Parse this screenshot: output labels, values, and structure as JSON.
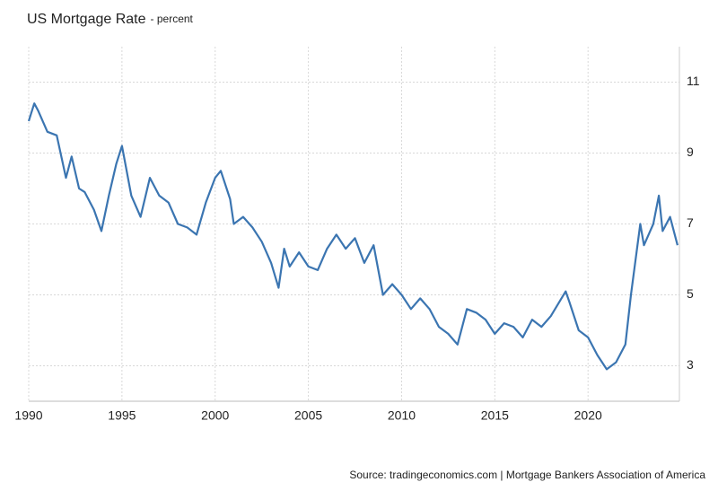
{
  "chart_data": {
    "type": "line",
    "title": "US Mortgage Rate",
    "subtitle": "- percent",
    "source": "Source: tradingeconomics.com | Mortgage Bankers Association of America",
    "xlim": [
      1990,
      2024.9
    ],
    "xticks": [
      1990,
      1995,
      2000,
      2005,
      2010,
      2015,
      2020
    ],
    "ylim": [
      2,
      12
    ],
    "yticks": [
      3,
      5,
      7,
      9,
      11
    ],
    "grid": true,
    "x": [
      1990,
      1990.3,
      1990.5,
      1991,
      1991.5,
      1992,
      1992.3,
      1992.7,
      1993,
      1993.5,
      1993.9,
      1994.3,
      1994.7,
      1995,
      1995.5,
      1996,
      1996.5,
      1997,
      1997.5,
      1998,
      1998.5,
      1999,
      1999.5,
      2000,
      2000.3,
      2000.8,
      2001,
      2001.5,
      2002,
      2002.5,
      2003,
      2003.4,
      2003.7,
      2004,
      2004.5,
      2005,
      2005.5,
      2006,
      2006.5,
      2007,
      2007.5,
      2008,
      2008.5,
      2009,
      2009.5,
      2010,
      2010.5,
      2011,
      2011.5,
      2012,
      2012.5,
      2013,
      2013.5,
      2014,
      2014.5,
      2015,
      2015.5,
      2016,
      2016.5,
      2017,
      2017.5,
      2018,
      2018.8,
      2019,
      2019.5,
      2020,
      2020.5,
      2021,
      2021.5,
      2022,
      2022.3,
      2022.8,
      2023,
      2023.5,
      2023.8,
      2024,
      2024.4,
      2024.8
    ],
    "series": [
      {
        "name": "US Mortgage Rate",
        "color": "#3b75b1",
        "values": [
          9.9,
          10.4,
          10.2,
          9.6,
          9.5,
          8.3,
          8.9,
          8.0,
          7.9,
          7.4,
          6.8,
          7.8,
          8.7,
          9.2,
          7.8,
          7.2,
          8.3,
          7.8,
          7.6,
          7.0,
          6.9,
          6.7,
          7.6,
          8.3,
          8.5,
          7.7,
          7.0,
          7.2,
          6.9,
          6.5,
          5.9,
          5.2,
          6.3,
          5.8,
          6.2,
          5.8,
          5.7,
          6.3,
          6.7,
          6.3,
          6.6,
          5.9,
          6.4,
          5.0,
          5.3,
          5.0,
          4.6,
          4.9,
          4.6,
          4.1,
          3.9,
          3.6,
          4.6,
          4.5,
          4.3,
          3.9,
          4.2,
          4.1,
          3.8,
          4.3,
          4.1,
          4.4,
          5.1,
          4.8,
          4.0,
          3.8,
          3.3,
          2.9,
          3.1,
          3.6,
          5.0,
          7.0,
          6.4,
          7.0,
          7.8,
          6.8,
          7.2,
          6.4
        ]
      }
    ]
  }
}
